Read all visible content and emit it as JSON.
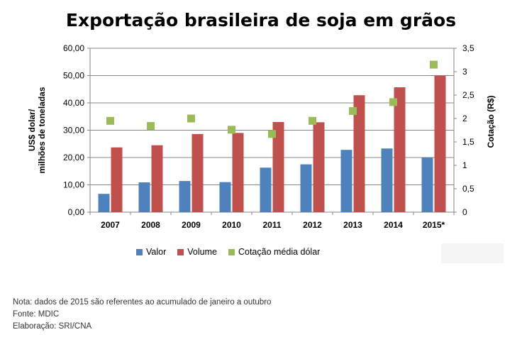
{
  "title": "Exportação brasileira de soja em grãos",
  "chart_data": {
    "type": "bar",
    "title": "Exportação brasileira de soja em grãos",
    "categories": [
      "2007",
      "2008",
      "2009",
      "2010",
      "2011",
      "2012",
      "2013",
      "2014",
      "2015*"
    ],
    "series": [
      {
        "name": "Valor",
        "type": "bar",
        "axis": "left",
        "color": "#4f81bd",
        "values": [
          6.7,
          10.9,
          11.4,
          11.0,
          16.3,
          17.5,
          22.8,
          23.3,
          20.0
        ]
      },
      {
        "name": "Volume",
        "type": "bar",
        "axis": "left",
        "color": "#c0504d",
        "values": [
          23.7,
          24.5,
          28.6,
          29.0,
          33.0,
          32.9,
          42.8,
          45.7,
          50.0
        ]
      },
      {
        "name": "Cotação média dólar",
        "type": "scatter",
        "axis": "right",
        "color": "#9bbb59",
        "values": [
          1.95,
          1.84,
          2.0,
          1.76,
          1.67,
          1.95,
          2.16,
          2.35,
          3.15
        ]
      }
    ],
    "ylabel_left_line1": "US$ dolar/",
    "ylabel_left_line2": "milhões de toneladas",
    "ylabel_right": "Cotação  (R$)",
    "ylim_left": [
      0,
      60
    ],
    "ylim_right": [
      0,
      3.5
    ],
    "yticks_left": [
      "0,00",
      "10,00",
      "20,00",
      "30,00",
      "40,00",
      "50,00",
      "60,00"
    ],
    "yticks_right": [
      "0",
      "0,5",
      "1",
      "1,5",
      "2",
      "2,5",
      "3",
      "3,5"
    ],
    "grid": true,
    "legend_position": "bottom"
  },
  "legend": {
    "valor": "Valor",
    "volume": "Volume",
    "cotacao": "Cotação média dólar"
  },
  "notes": {
    "nota": "Nota: dados de 2015 são referentes ao acumulado de janeiro a outubro",
    "fonte": "Fonte: MDIC",
    "elaboracao": "Elaboração: SRI/CNA"
  },
  "colors": {
    "valor": "#4f81bd",
    "volume": "#c0504d",
    "cotacao": "#9bbb59",
    "grid": "#868686"
  }
}
